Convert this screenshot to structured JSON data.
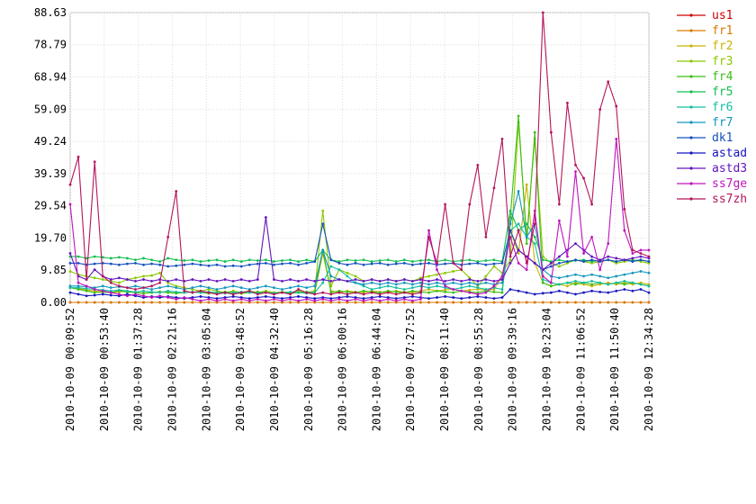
{
  "chart_data": {
    "type": "line",
    "title": "",
    "xlabel": "",
    "ylabel": "",
    "ylim": [
      0,
      88.63
    ],
    "y_ticks": [
      "88.63",
      "78.79",
      "68.94",
      "59.09",
      "49.24",
      "39.39",
      "29.54",
      "19.70",
      "9.85",
      "0.00"
    ],
    "y_tick_values": [
      88.63,
      78.79,
      68.94,
      59.09,
      49.24,
      39.39,
      29.54,
      19.7,
      9.85,
      0.0
    ],
    "x_ticks": [
      "2010-10-09 00:09:52",
      "2010-10-09 00:53:40",
      "2010-10-09 01:37:28",
      "2010-10-09 02:21:16",
      "2010-10-09 03:05:04",
      "2010-10-09 03:48:52",
      "2010-10-09 04:32:40",
      "2010-10-09 05:16:28",
      "2010-10-09 06:00:16",
      "2010-10-09 06:44:04",
      "2010-10-09 07:27:52",
      "2010-10-09 08:11:40",
      "2010-10-09 08:55:28",
      "2010-10-09 09:39:16",
      "2010-10-09 10:23:04",
      "2010-10-09 11:06:52",
      "2010-10-09 11:50:40",
      "2010-10-09 12:34:28"
    ],
    "grid": true,
    "legend_position": "right",
    "series": [
      {
        "name": "us1",
        "color": "#cc0000",
        "values": [
          0,
          0,
          0,
          0,
          0,
          0,
          0,
          0,
          0,
          0,
          0,
          0,
          0,
          0,
          0,
          0,
          0,
          0,
          0,
          0,
          0,
          0,
          0,
          0,
          0,
          0,
          0,
          0,
          0,
          0,
          0,
          0,
          0,
          0,
          0,
          0,
          0,
          0,
          0,
          0,
          0,
          0,
          0,
          0,
          0,
          0,
          0,
          0,
          0,
          0,
          0,
          0,
          0,
          0,
          0,
          0,
          0,
          0,
          0,
          0,
          0,
          0,
          0,
          0,
          0,
          0,
          0,
          0,
          0,
          0,
          0,
          0
        ]
      },
      {
        "name": "fr1",
        "color": "#d77a00",
        "values": [
          0,
          0,
          0,
          0,
          0,
          0,
          0,
          0,
          0,
          0,
          0,
          0,
          0,
          0,
          0,
          0,
          0,
          0,
          0,
          0,
          0,
          0,
          0,
          0,
          0,
          0,
          0,
          0,
          0,
          0,
          0,
          0,
          0,
          0,
          0,
          0,
          0,
          0,
          0,
          0,
          0,
          0,
          0,
          0,
          0,
          0,
          0,
          0,
          0,
          0,
          0,
          0,
          0,
          0,
          0,
          0,
          0,
          0,
          0,
          0,
          0,
          0,
          0,
          0,
          0,
          0,
          0,
          0,
          0,
          0,
          0,
          0
        ]
      },
      {
        "name": "fr2",
        "color": "#c8b400",
        "values": [
          4.5,
          4.2,
          3.8,
          3.5,
          3.2,
          3.0,
          3.2,
          3.5,
          3.0,
          2.8,
          3.0,
          3.3,
          3.0,
          2.8,
          3.0,
          3.2,
          3.0,
          2.8,
          3.0,
          3.2,
          3.0,
          2.7,
          3.0,
          3.2,
          3.0,
          2.8,
          3.0,
          2.7,
          3.0,
          2.8,
          3.0,
          15.0,
          3.5,
          3.0,
          3.5,
          3.2,
          3.0,
          3.5,
          3.2,
          3.0,
          3.5,
          3.2,
          3.0,
          3.5,
          4.0,
          3.5,
          3.8,
          4.0,
          3.5,
          3.8,
          4.0,
          3.8,
          4.0,
          8.0,
          22.0,
          15.0,
          36.0,
          12.0,
          6.0,
          5.0,
          5.5,
          5.0,
          6.0,
          5.5,
          5.0,
          5.5,
          6.0,
          5.5,
          6.0,
          5.5,
          6.0,
          5.5
        ]
      },
      {
        "name": "fr3",
        "color": "#8cc800",
        "values": [
          9.5,
          8.5,
          8.0,
          7.5,
          7.0,
          6.5,
          6.0,
          7.0,
          7.5,
          8.0,
          8.2,
          9.0,
          6.0,
          5.0,
          4.5,
          4.0,
          3.5,
          4.0,
          3.5,
          3.0,
          3.5,
          3.0,
          3.5,
          3.0,
          3.5,
          3.0,
          3.2,
          3.0,
          3.5,
          3.0,
          3.5,
          28.0,
          5.0,
          10.0,
          9.0,
          8.0,
          6.5,
          7.0,
          6.5,
          7.0,
          6.5,
          7.0,
          6.5,
          7.5,
          8.0,
          8.5,
          9.0,
          9.5,
          10.0,
          7.5,
          5.0,
          8.0,
          11.0,
          9.0,
          13.0,
          55.0,
          20.0,
          50.0,
          14.0,
          12.0,
          11.0,
          12.0,
          13.0,
          12.5,
          12.0,
          12.5,
          13.0,
          12.0,
          12.5,
          13.0,
          12.5,
          12.0
        ]
      },
      {
        "name": "fr4",
        "color": "#3cbe14",
        "values": [
          4.5,
          4.0,
          3.5,
          3.0,
          3.2,
          3.0,
          3.5,
          3.2,
          3.0,
          2.8,
          3.0,
          3.2,
          3.0,
          2.8,
          3.0,
          3.2,
          3.0,
          2.8,
          3.0,
          3.2,
          3.0,
          2.8,
          3.0,
          3.2,
          3.0,
          2.8,
          3.0,
          2.8,
          3.0,
          3.2,
          3.0,
          16.0,
          3.0,
          3.5,
          3.2,
          3.0,
          3.5,
          3.2,
          3.0,
          3.5,
          3.2,
          3.0,
          3.5,
          3.2,
          3.0,
          3.5,
          3.2,
          3.0,
          3.5,
          3.2,
          3.0,
          3.5,
          3.2,
          3.0,
          26.0,
          57.0,
          18.0,
          52.0,
          6.0,
          5.0,
          5.5,
          6.0,
          5.5,
          6.0,
          5.5,
          6.0,
          5.5,
          6.0,
          5.5,
          6.0,
          5.5,
          5.0
        ]
      },
      {
        "name": "fr5",
        "color": "#14be50",
        "values": [
          14.0,
          14.0,
          13.5,
          14.0,
          13.8,
          13.5,
          13.8,
          13.5,
          13.0,
          13.5,
          13.0,
          12.5,
          13.5,
          13.0,
          12.8,
          13.0,
          12.5,
          12.8,
          13.0,
          12.5,
          13.0,
          12.5,
          13.0,
          12.8,
          13.0,
          12.5,
          12.8,
          13.0,
          12.5,
          13.0,
          12.5,
          16.0,
          13.0,
          12.5,
          13.0,
          12.8,
          13.0,
          12.5,
          12.8,
          13.0,
          12.5,
          13.0,
          12.5,
          12.8,
          13.0,
          12.5,
          13.0,
          12.5,
          12.8,
          13.0,
          12.5,
          12.8,
          13.0,
          12.5,
          28.0,
          22.0,
          24.0,
          20.0,
          13.0,
          12.5,
          13.0,
          12.5,
          12.8,
          13.0,
          12.5,
          12.8,
          13.0,
          12.5,
          13.0,
          12.8,
          13.0,
          12.5
        ]
      },
      {
        "name": "fr6",
        "color": "#14bea0",
        "values": [
          4.5,
          4.5,
          4.2,
          4.0,
          3.8,
          3.5,
          3.8,
          3.5,
          3.2,
          3.5,
          3.2,
          3.0,
          3.5,
          3.2,
          3.0,
          3.2,
          3.0,
          3.2,
          3.0,
          2.8,
          3.0,
          3.2,
          3.0,
          2.8,
          3.0,
          2.8,
          3.0,
          3.2,
          3.0,
          2.8,
          3.0,
          6.0,
          11.0,
          10.0,
          8.0,
          6.0,
          5.0,
          4.0,
          4.5,
          5.0,
          4.5,
          4.0,
          4.5,
          5.0,
          4.5,
          5.0,
          4.5,
          4.0,
          4.5,
          5.0,
          4.5,
          4.0,
          4.5,
          4.0,
          22.0,
          24.0,
          20.0,
          18.0,
          7.0,
          6.0,
          5.5,
          6.0,
          6.5,
          6.0,
          6.5,
          6.0,
          5.5,
          6.0,
          6.5,
          6.0,
          5.5,
          5.0
        ]
      },
      {
        "name": "fr7",
        "color": "#1496be",
        "values": [
          5.0,
          5.0,
          4.8,
          4.5,
          5.0,
          4.5,
          4.8,
          4.5,
          5.0,
          4.5,
          4.0,
          4.5,
          5.0,
          4.5,
          4.0,
          4.5,
          5.0,
          4.5,
          4.0,
          4.5,
          5.0,
          4.5,
          4.0,
          4.5,
          5.0,
          4.5,
          4.0,
          4.5,
          5.0,
          4.5,
          5.0,
          16.0,
          8.0,
          7.0,
          6.5,
          6.0,
          5.5,
          6.0,
          5.5,
          6.0,
          5.5,
          6.0,
          5.5,
          6.0,
          5.5,
          6.0,
          5.5,
          6.0,
          5.5,
          6.0,
          5.5,
          6.0,
          5.5,
          6.0,
          24.0,
          34.0,
          20.0,
          24.0,
          10.0,
          8.0,
          7.5,
          8.0,
          8.5,
          8.0,
          8.5,
          8.0,
          7.5,
          8.0,
          8.5,
          9.0,
          9.5,
          9.0
        ]
      },
      {
        "name": "dk1",
        "color": "#1450be",
        "values": [
          12.0,
          12.0,
          11.5,
          11.8,
          12.0,
          11.8,
          11.5,
          11.8,
          12.0,
          11.5,
          11.8,
          11.5,
          11.0,
          11.2,
          11.5,
          11.8,
          11.5,
          11.2,
          11.5,
          11.0,
          11.2,
          11.0,
          11.5,
          11.8,
          12.0,
          11.5,
          11.8,
          12.0,
          11.5,
          12.0,
          12.5,
          24.0,
          13.0,
          12.0,
          11.5,
          12.0,
          11.5,
          11.8,
          12.0,
          11.5,
          11.8,
          12.0,
          11.5,
          11.8,
          12.0,
          11.5,
          11.8,
          12.0,
          11.5,
          11.8,
          12.0,
          11.5,
          11.8,
          12.0,
          22.0,
          16.0,
          14.0,
          12.0,
          10.0,
          11.0,
          12.0,
          12.5,
          13.0,
          12.5,
          13.0,
          12.5,
          13.0,
          12.5,
          13.0,
          12.5,
          13.0,
          12.5
        ]
      },
      {
        "name": "astad",
        "color": "#1414be",
        "values": [
          3.0,
          2.5,
          2.0,
          2.2,
          2.5,
          2.2,
          2.0,
          2.5,
          2.0,
          1.5,
          1.8,
          1.5,
          1.8,
          1.5,
          1.2,
          1.5,
          1.8,
          1.5,
          1.2,
          1.5,
          1.8,
          1.5,
          1.2,
          1.5,
          1.8,
          1.5,
          1.2,
          1.5,
          1.8,
          1.5,
          1.2,
          1.5,
          1.2,
          1.5,
          1.8,
          1.5,
          1.2,
          1.5,
          1.8,
          1.5,
          1.2,
          1.5,
          1.8,
          1.5,
          1.2,
          1.5,
          1.8,
          1.5,
          1.2,
          1.5,
          1.8,
          1.5,
          1.2,
          1.5,
          4.0,
          3.5,
          3.0,
          2.5,
          2.8,
          3.0,
          3.5,
          3.0,
          2.5,
          3.0,
          3.5,
          3.2,
          3.0,
          3.5,
          4.0,
          3.5,
          4.0,
          3.0
        ]
      },
      {
        "name": "astd3",
        "color": "#6414be",
        "values": [
          15.0,
          8.0,
          7.0,
          10.0,
          8.0,
          7.0,
          7.5,
          7.0,
          6.5,
          7.0,
          6.5,
          7.0,
          6.5,
          7.0,
          6.5,
          7.0,
          6.5,
          7.0,
          6.5,
          7.0,
          6.5,
          7.0,
          6.5,
          7.0,
          26.0,
          7.0,
          6.5,
          7.0,
          6.5,
          7.0,
          6.5,
          7.0,
          6.5,
          7.0,
          6.5,
          7.0,
          6.5,
          7.0,
          6.5,
          7.0,
          6.5,
          7.0,
          6.5,
          7.0,
          6.5,
          7.0,
          6.5,
          7.0,
          6.5,
          7.0,
          6.5,
          7.0,
          6.5,
          7.0,
          12.0,
          16.0,
          14.0,
          12.0,
          10.0,
          12.0,
          14.0,
          16.0,
          18.0,
          16.0,
          14.0,
          13.0,
          14.0,
          13.5,
          13.0,
          13.5,
          14.0,
          13.5
        ]
      },
      {
        "name": "ss7ge",
        "color": "#be14be",
        "values": [
          30.0,
          6.0,
          5.0,
          4.0,
          3.5,
          3.0,
          2.5,
          2.0,
          2.5,
          2.0,
          1.5,
          2.0,
          1.5,
          1.0,
          1.5,
          1.0,
          0.5,
          1.0,
          0.5,
          1.0,
          0.5,
          1.0,
          0.5,
          1.0,
          0.5,
          1.0,
          0.5,
          1.0,
          0.5,
          1.0,
          0.5,
          1.0,
          0.5,
          1.0,
          0.5,
          1.0,
          0.5,
          1.0,
          0.5,
          1.0,
          0.5,
          1.0,
          0.5,
          1.0,
          22.0,
          10.0,
          5.0,
          4.0,
          3.5,
          3.0,
          2.5,
          3.0,
          5.0,
          8.0,
          20.0,
          12.0,
          10.0,
          28.0,
          8.0,
          6.0,
          25.0,
          14.0,
          40.0,
          15.0,
          20.0,
          10.0,
          18.0,
          50.0,
          22.0,
          15.0,
          16.0,
          16.0
        ]
      },
      {
        "name": "ss7zh",
        "color": "#b4145a",
        "values": [
          36.0,
          44.5,
          7.0,
          43.0,
          8.0,
          6.0,
          5.0,
          4.5,
          4.0,
          4.5,
          5.0,
          6.0,
          20.0,
          34.0,
          3.5,
          3.0,
          3.5,
          3.0,
          2.5,
          3.0,
          2.5,
          3.0,
          3.5,
          2.5,
          3.0,
          2.5,
          3.0,
          2.5,
          4.0,
          3.0,
          2.5,
          3.0,
          2.5,
          3.0,
          2.5,
          3.0,
          2.5,
          3.0,
          2.5,
          3.0,
          2.5,
          3.0,
          2.5,
          3.0,
          20.0,
          12.0,
          30.0,
          12.0,
          10.0,
          30.0,
          42.0,
          20.0,
          35.0,
          50.0,
          14.0,
          22.0,
          12.0,
          24.0,
          88.63,
          52.0,
          30.0,
          61.0,
          42.0,
          38.0,
          30.0,
          59.0,
          67.5,
          60.0,
          28.5,
          16.0,
          15.0,
          14.0
        ]
      }
    ]
  }
}
